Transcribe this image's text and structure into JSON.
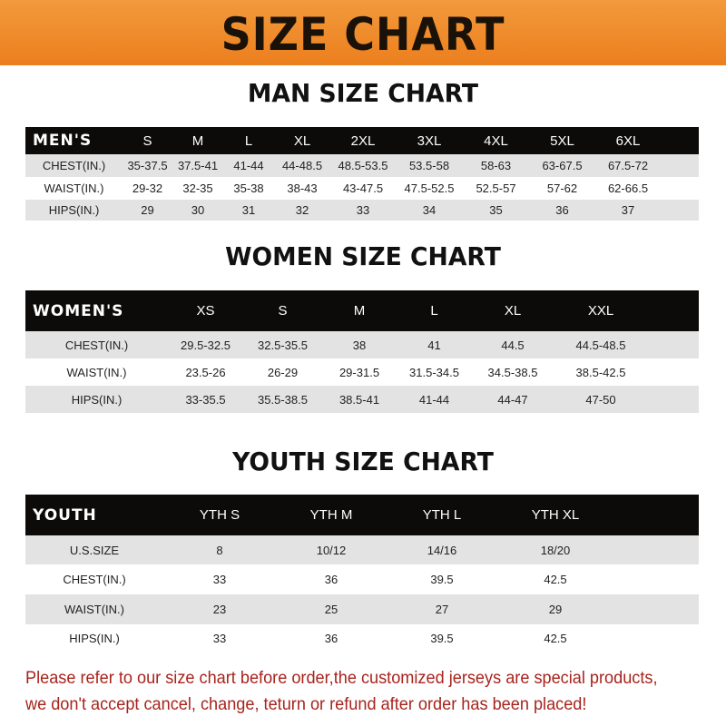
{
  "banner": {
    "title": "SIZE CHART",
    "color": "#ee8526"
  },
  "men": {
    "title": "MAN SIZE CHART",
    "header": [
      "MEN'S",
      "S",
      "M",
      "L",
      "XL",
      "2XL",
      "3XL",
      "4XL",
      "5XL",
      "6XL"
    ],
    "rows": [
      [
        "CHEST(IN.)",
        "35-37.5",
        "37.5-41",
        "41-44",
        "44-48.5",
        "48.5-53.5",
        "53.5-58",
        "58-63",
        "63-67.5",
        "67.5-72"
      ],
      [
        "WAIST(IN.)",
        "29-32",
        "32-35",
        "35-38",
        "38-43",
        "43-47.5",
        "47.5-52.5",
        "52.5-57",
        "57-62",
        "62-66.5"
      ],
      [
        "HIPS(IN.)",
        "29",
        "30",
        "31",
        "32",
        "33",
        "34",
        "35",
        "36",
        "37"
      ]
    ]
  },
  "women": {
    "title": "WOMEN SIZE CHART",
    "header": [
      "WOMEN'S",
      "XS",
      "S",
      "M",
      "L",
      "XL",
      "XXL"
    ],
    "rows": [
      [
        "CHEST(IN.)",
        "29.5-32.5",
        "32.5-35.5",
        "38",
        "41",
        "44.5",
        "44.5-48.5"
      ],
      [
        "WAIST(IN.)",
        "23.5-26",
        "26-29",
        "29-31.5",
        "31.5-34.5",
        "34.5-38.5",
        "38.5-42.5"
      ],
      [
        "HIPS(IN.)",
        "33-35.5",
        "35.5-38.5",
        "38.5-41",
        "41-44",
        "44-47",
        "47-50"
      ]
    ]
  },
  "youth": {
    "title": "YOUTH SIZE CHART",
    "header": [
      "YOUTH",
      "YTH S",
      "YTH M",
      "YTH L",
      "YTH XL"
    ],
    "rows": [
      [
        "U.S.SIZE",
        "8",
        "10/12",
        "14/16",
        "18/20"
      ],
      [
        "CHEST(IN.)",
        "33",
        "36",
        "39.5",
        "42.5"
      ],
      [
        "WAIST(IN.)",
        "23",
        "25",
        "27",
        "29"
      ],
      [
        "HIPS(IN.)",
        "33",
        "36",
        "39.5",
        "42.5"
      ]
    ]
  },
  "note": {
    "line1": "Please refer to our size chart before order,the customized jerseys are special products,",
    "line2": "we don't accept cancel, change, teturn or refund after order has been placed!",
    "color": "#a8231c"
  }
}
